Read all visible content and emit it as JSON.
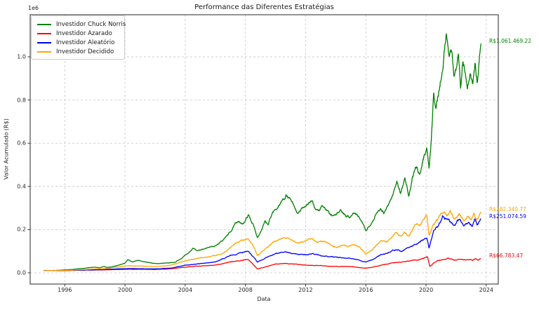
{
  "chart_data": {
    "type": "line",
    "title": "Performance das Diferentes Estratégias",
    "xlabel": "Data",
    "ylabel": "Valor Acumulado (R$)",
    "y_offset_label": "1e6",
    "grid": true,
    "grid_style": "dashed",
    "grid_color": "#c8c8c8",
    "legend_position": "upper-left",
    "xlim": [
      1993.7,
      2024.8
    ],
    "ylim": [
      -52000,
      1195000
    ],
    "x_ticks": [
      1996,
      2000,
      2004,
      2008,
      2012,
      2016,
      2020,
      2024
    ],
    "x_tick_labels": [
      "1996",
      "2000",
      "2004",
      "2008",
      "2012",
      "2016",
      "2020",
      "2024"
    ],
    "y_ticks": [
      0,
      200000,
      400000,
      600000,
      800000,
      1000000
    ],
    "y_tick_labels": [
      "0.0",
      "0.2",
      "0.4",
      "0.6",
      "0.8",
      "1.0"
    ],
    "series": [
      {
        "name": "Investidor Chuck Norris",
        "color": "#008000",
        "final_value": 1061469.22,
        "final_label": "R$1.061.469.22",
        "noise": 0.022,
        "points": [
          [
            1994.6,
            10000
          ],
          [
            1995,
            10500
          ],
          [
            1995.5,
            11800
          ],
          [
            1996,
            13500
          ],
          [
            1996.5,
            15500
          ],
          [
            1997,
            18500
          ],
          [
            1997.5,
            23000
          ],
          [
            1998,
            26000
          ],
          [
            1998.3,
            22500
          ],
          [
            1998.6,
            29000
          ],
          [
            1998.8,
            24500
          ],
          [
            1999.2,
            28000
          ],
          [
            1999.6,
            36000
          ],
          [
            2000,
            45000
          ],
          [
            2000.2,
            62000
          ],
          [
            2000.5,
            50000
          ],
          [
            2000.8,
            58000
          ],
          [
            2001.2,
            52000
          ],
          [
            2001.8,
            45000
          ],
          [
            2002.3,
            42000
          ],
          [
            2002.8,
            46000
          ],
          [
            2003.3,
            48000
          ],
          [
            2003.8,
            70000
          ],
          [
            2004.2,
            90000
          ],
          [
            2004.5,
            113000
          ],
          [
            2004.8,
            100000
          ],
          [
            2005.2,
            108000
          ],
          [
            2005.6,
            120000
          ],
          [
            2006,
            125000
          ],
          [
            2006.5,
            150000
          ],
          [
            2007,
            190000
          ],
          [
            2007.5,
            242000
          ],
          [
            2007.8,
            222000
          ],
          [
            2008.2,
            268000
          ],
          [
            2008.5,
            225000
          ],
          [
            2008.8,
            165000
          ],
          [
            2009.1,
            205000
          ],
          [
            2009.3,
            235000
          ],
          [
            2009.5,
            220000
          ],
          [
            2009.8,
            280000
          ],
          [
            2010.1,
            300000
          ],
          [
            2010.4,
            330000
          ],
          [
            2010.7,
            360000
          ],
          [
            2011,
            335000
          ],
          [
            2011.3,
            295000
          ],
          [
            2011.5,
            270000
          ],
          [
            2011.8,
            300000
          ],
          [
            2012.1,
            320000
          ],
          [
            2012.4,
            331000
          ],
          [
            2012.6,
            300000
          ],
          [
            2012.9,
            285000
          ],
          [
            2013.1,
            315000
          ],
          [
            2013.4,
            290000
          ],
          [
            2013.7,
            262000
          ],
          [
            2014,
            265000
          ],
          [
            2014.3,
            290000
          ],
          [
            2014.6,
            272000
          ],
          [
            2014.9,
            258000
          ],
          [
            2015.2,
            278000
          ],
          [
            2015.5,
            262000
          ],
          [
            2015.8,
            225000
          ],
          [
            2016,
            192000
          ],
          [
            2016.2,
            215000
          ],
          [
            2016.5,
            248000
          ],
          [
            2016.8,
            285000
          ],
          [
            2017,
            302000
          ],
          [
            2017.2,
            280000
          ],
          [
            2017.5,
            318000
          ],
          [
            2017.8,
            360000
          ],
          [
            2018.05,
            428000
          ],
          [
            2018.3,
            368000
          ],
          [
            2018.6,
            445000
          ],
          [
            2018.85,
            350000
          ],
          [
            2019.1,
            440000
          ],
          [
            2019.35,
            485000
          ],
          [
            2019.6,
            460000
          ],
          [
            2019.8,
            520000
          ],
          [
            2020.05,
            585000
          ],
          [
            2020.2,
            480000
          ],
          [
            2020.35,
            620000
          ],
          [
            2020.5,
            825000
          ],
          [
            2020.65,
            760000
          ],
          [
            2020.9,
            857000
          ],
          [
            2021.1,
            965000
          ],
          [
            2021.35,
            1130000
          ],
          [
            2021.5,
            1000000
          ],
          [
            2021.7,
            1050000
          ],
          [
            2021.85,
            900000
          ],
          [
            2022,
            955000
          ],
          [
            2022.15,
            1020000
          ],
          [
            2022.3,
            870000
          ],
          [
            2022.45,
            985000
          ],
          [
            2022.6,
            920000
          ],
          [
            2022.75,
            846000
          ],
          [
            2022.95,
            920000
          ],
          [
            2023.1,
            868000
          ],
          [
            2023.25,
            955000
          ],
          [
            2023.4,
            880000
          ],
          [
            2023.55,
            1010000
          ],
          [
            2023.65,
            1061469.22
          ]
        ]
      },
      {
        "name": "Investidor Azarado",
        "color": "#ff0000",
        "final_value": 66783.47,
        "final_label": "R$66.783.47",
        "noise": 0.03,
        "points": [
          [
            1994.6,
            10000
          ],
          [
            1995.5,
            10200
          ],
          [
            1996.5,
            11000
          ],
          [
            1997.5,
            12500
          ],
          [
            1998.5,
            13500
          ],
          [
            1999.5,
            15000
          ],
          [
            2000.2,
            16500
          ],
          [
            2001,
            16000
          ],
          [
            2002,
            15500
          ],
          [
            2003,
            18000
          ],
          [
            2004,
            27000
          ],
          [
            2005,
            32000
          ],
          [
            2006,
            36000
          ],
          [
            2007,
            50000
          ],
          [
            2008.2,
            62000
          ],
          [
            2008.8,
            18000
          ],
          [
            2009.5,
            30000
          ],
          [
            2010,
            40000
          ],
          [
            2010.7,
            44000
          ],
          [
            2011.5,
            39000
          ],
          [
            2012,
            36000
          ],
          [
            2013,
            33000
          ],
          [
            2014,
            30000
          ],
          [
            2015,
            29000
          ],
          [
            2016,
            22000
          ],
          [
            2016.5,
            27000
          ],
          [
            2017,
            35000
          ],
          [
            2018,
            48000
          ],
          [
            2019,
            56000
          ],
          [
            2019.5,
            60000
          ],
          [
            2020.1,
            75000
          ],
          [
            2020.25,
            29000
          ],
          [
            2020.5,
            45000
          ],
          [
            2020.8,
            56000
          ],
          [
            2021.1,
            62000
          ],
          [
            2021.5,
            68000
          ],
          [
            2021.9,
            58000
          ],
          [
            2022.3,
            64000
          ],
          [
            2022.6,
            60000
          ],
          [
            2022.9,
            63000
          ],
          [
            2023.1,
            57000
          ],
          [
            2023.3,
            65000
          ],
          [
            2023.45,
            58000
          ],
          [
            2023.65,
            66783.47
          ]
        ]
      },
      {
        "name": "Investidor Aleatório",
        "color": "#0000ff",
        "final_value": 251074.59,
        "final_label": "R$251.074.59",
        "noise": 0.025,
        "points": [
          [
            1994.6,
            10000
          ],
          [
            1995.5,
            10500
          ],
          [
            1996.5,
            11500
          ],
          [
            1997.5,
            13500
          ],
          [
            1998.5,
            15000
          ],
          [
            1999.5,
            18000
          ],
          [
            2000.2,
            20000
          ],
          [
            2001,
            19000
          ],
          [
            2002,
            18000
          ],
          [
            2003,
            21000
          ],
          [
            2004,
            35000
          ],
          [
            2005,
            42000
          ],
          [
            2006,
            51000
          ],
          [
            2007,
            80000
          ],
          [
            2008.2,
            100000
          ],
          [
            2008.8,
            51000
          ],
          [
            2009.5,
            75000
          ],
          [
            2010,
            88000
          ],
          [
            2010.7,
            96000
          ],
          [
            2011.5,
            85000
          ],
          [
            2012,
            83000
          ],
          [
            2012.5,
            88000
          ],
          [
            2013,
            80000
          ],
          [
            2014,
            72000
          ],
          [
            2015,
            67000
          ],
          [
            2016,
            51000
          ],
          [
            2016.5,
            62000
          ],
          [
            2017,
            83000
          ],
          [
            2017.5,
            92000
          ],
          [
            2018,
            110000
          ],
          [
            2018.4,
            100000
          ],
          [
            2019,
            121000
          ],
          [
            2019.3,
            132000
          ],
          [
            2020.05,
            160000
          ],
          [
            2020.2,
            116000
          ],
          [
            2020.5,
            190000
          ],
          [
            2020.8,
            215000
          ],
          [
            2021.1,
            262000
          ],
          [
            2021.5,
            243000
          ],
          [
            2021.9,
            220000
          ],
          [
            2022.2,
            250000
          ],
          [
            2022.5,
            218000
          ],
          [
            2022.8,
            235000
          ],
          [
            2023.05,
            218000
          ],
          [
            2023.25,
            247000
          ],
          [
            2023.4,
            222000
          ],
          [
            2023.65,
            251074.59
          ]
        ]
      },
      {
        "name": "Investidor Decidido",
        "color": "#ffa500",
        "final_value": 282340.77,
        "final_label": "R$282.340.77",
        "noise": 0.025,
        "points": [
          [
            1994.6,
            10000
          ],
          [
            1995.5,
            11000
          ],
          [
            1996.5,
            12500
          ],
          [
            1997.5,
            16000
          ],
          [
            1998.5,
            19000
          ],
          [
            1999.5,
            26000
          ],
          [
            2000.2,
            33000
          ],
          [
            2001,
            31000
          ],
          [
            2002,
            28500
          ],
          [
            2003,
            34000
          ],
          [
            2004,
            56000
          ],
          [
            2004.5,
            62000
          ],
          [
            2005,
            68000
          ],
          [
            2006,
            80000
          ],
          [
            2006.5,
            90000
          ],
          [
            2007,
            118000
          ],
          [
            2007.6,
            145000
          ],
          [
            2008,
            152000
          ],
          [
            2008.2,
            159000
          ],
          [
            2008.5,
            128000
          ],
          [
            2008.8,
            80000
          ],
          [
            2009.2,
            105000
          ],
          [
            2009.6,
            125000
          ],
          [
            2010,
            148000
          ],
          [
            2010.5,
            160000
          ],
          [
            2010.8,
            165000
          ],
          [
            2011.2,
            148000
          ],
          [
            2011.5,
            138000
          ],
          [
            2012,
            148000
          ],
          [
            2012.4,
            158000
          ],
          [
            2012.8,
            143000
          ],
          [
            2013.2,
            148000
          ],
          [
            2013.6,
            132000
          ],
          [
            2014,
            118000
          ],
          [
            2014.4,
            130000
          ],
          [
            2014.8,
            124000
          ],
          [
            2015.2,
            133000
          ],
          [
            2015.6,
            118000
          ],
          [
            2016,
            88000
          ],
          [
            2016.4,
            105000
          ],
          [
            2017,
            148000
          ],
          [
            2017.4,
            142000
          ],
          [
            2018,
            188000
          ],
          [
            2018.3,
            167000
          ],
          [
            2018.6,
            186000
          ],
          [
            2018.85,
            168000
          ],
          [
            2019.3,
            228000
          ],
          [
            2019.6,
            222000
          ],
          [
            2020.05,
            270000
          ],
          [
            2020.2,
            172000
          ],
          [
            2020.5,
            225000
          ],
          [
            2020.8,
            250000
          ],
          [
            2021.1,
            283000
          ],
          [
            2021.4,
            268000
          ],
          [
            2021.6,
            285000
          ],
          [
            2021.9,
            247000
          ],
          [
            2022.2,
            270000
          ],
          [
            2022.5,
            241000
          ],
          [
            2022.8,
            262000
          ],
          [
            2023,
            247000
          ],
          [
            2023.2,
            272000
          ],
          [
            2023.35,
            243000
          ],
          [
            2023.5,
            260000
          ],
          [
            2023.65,
            282340.77
          ]
        ]
      }
    ],
    "legend_order": [
      0,
      1,
      2,
      3
    ]
  }
}
